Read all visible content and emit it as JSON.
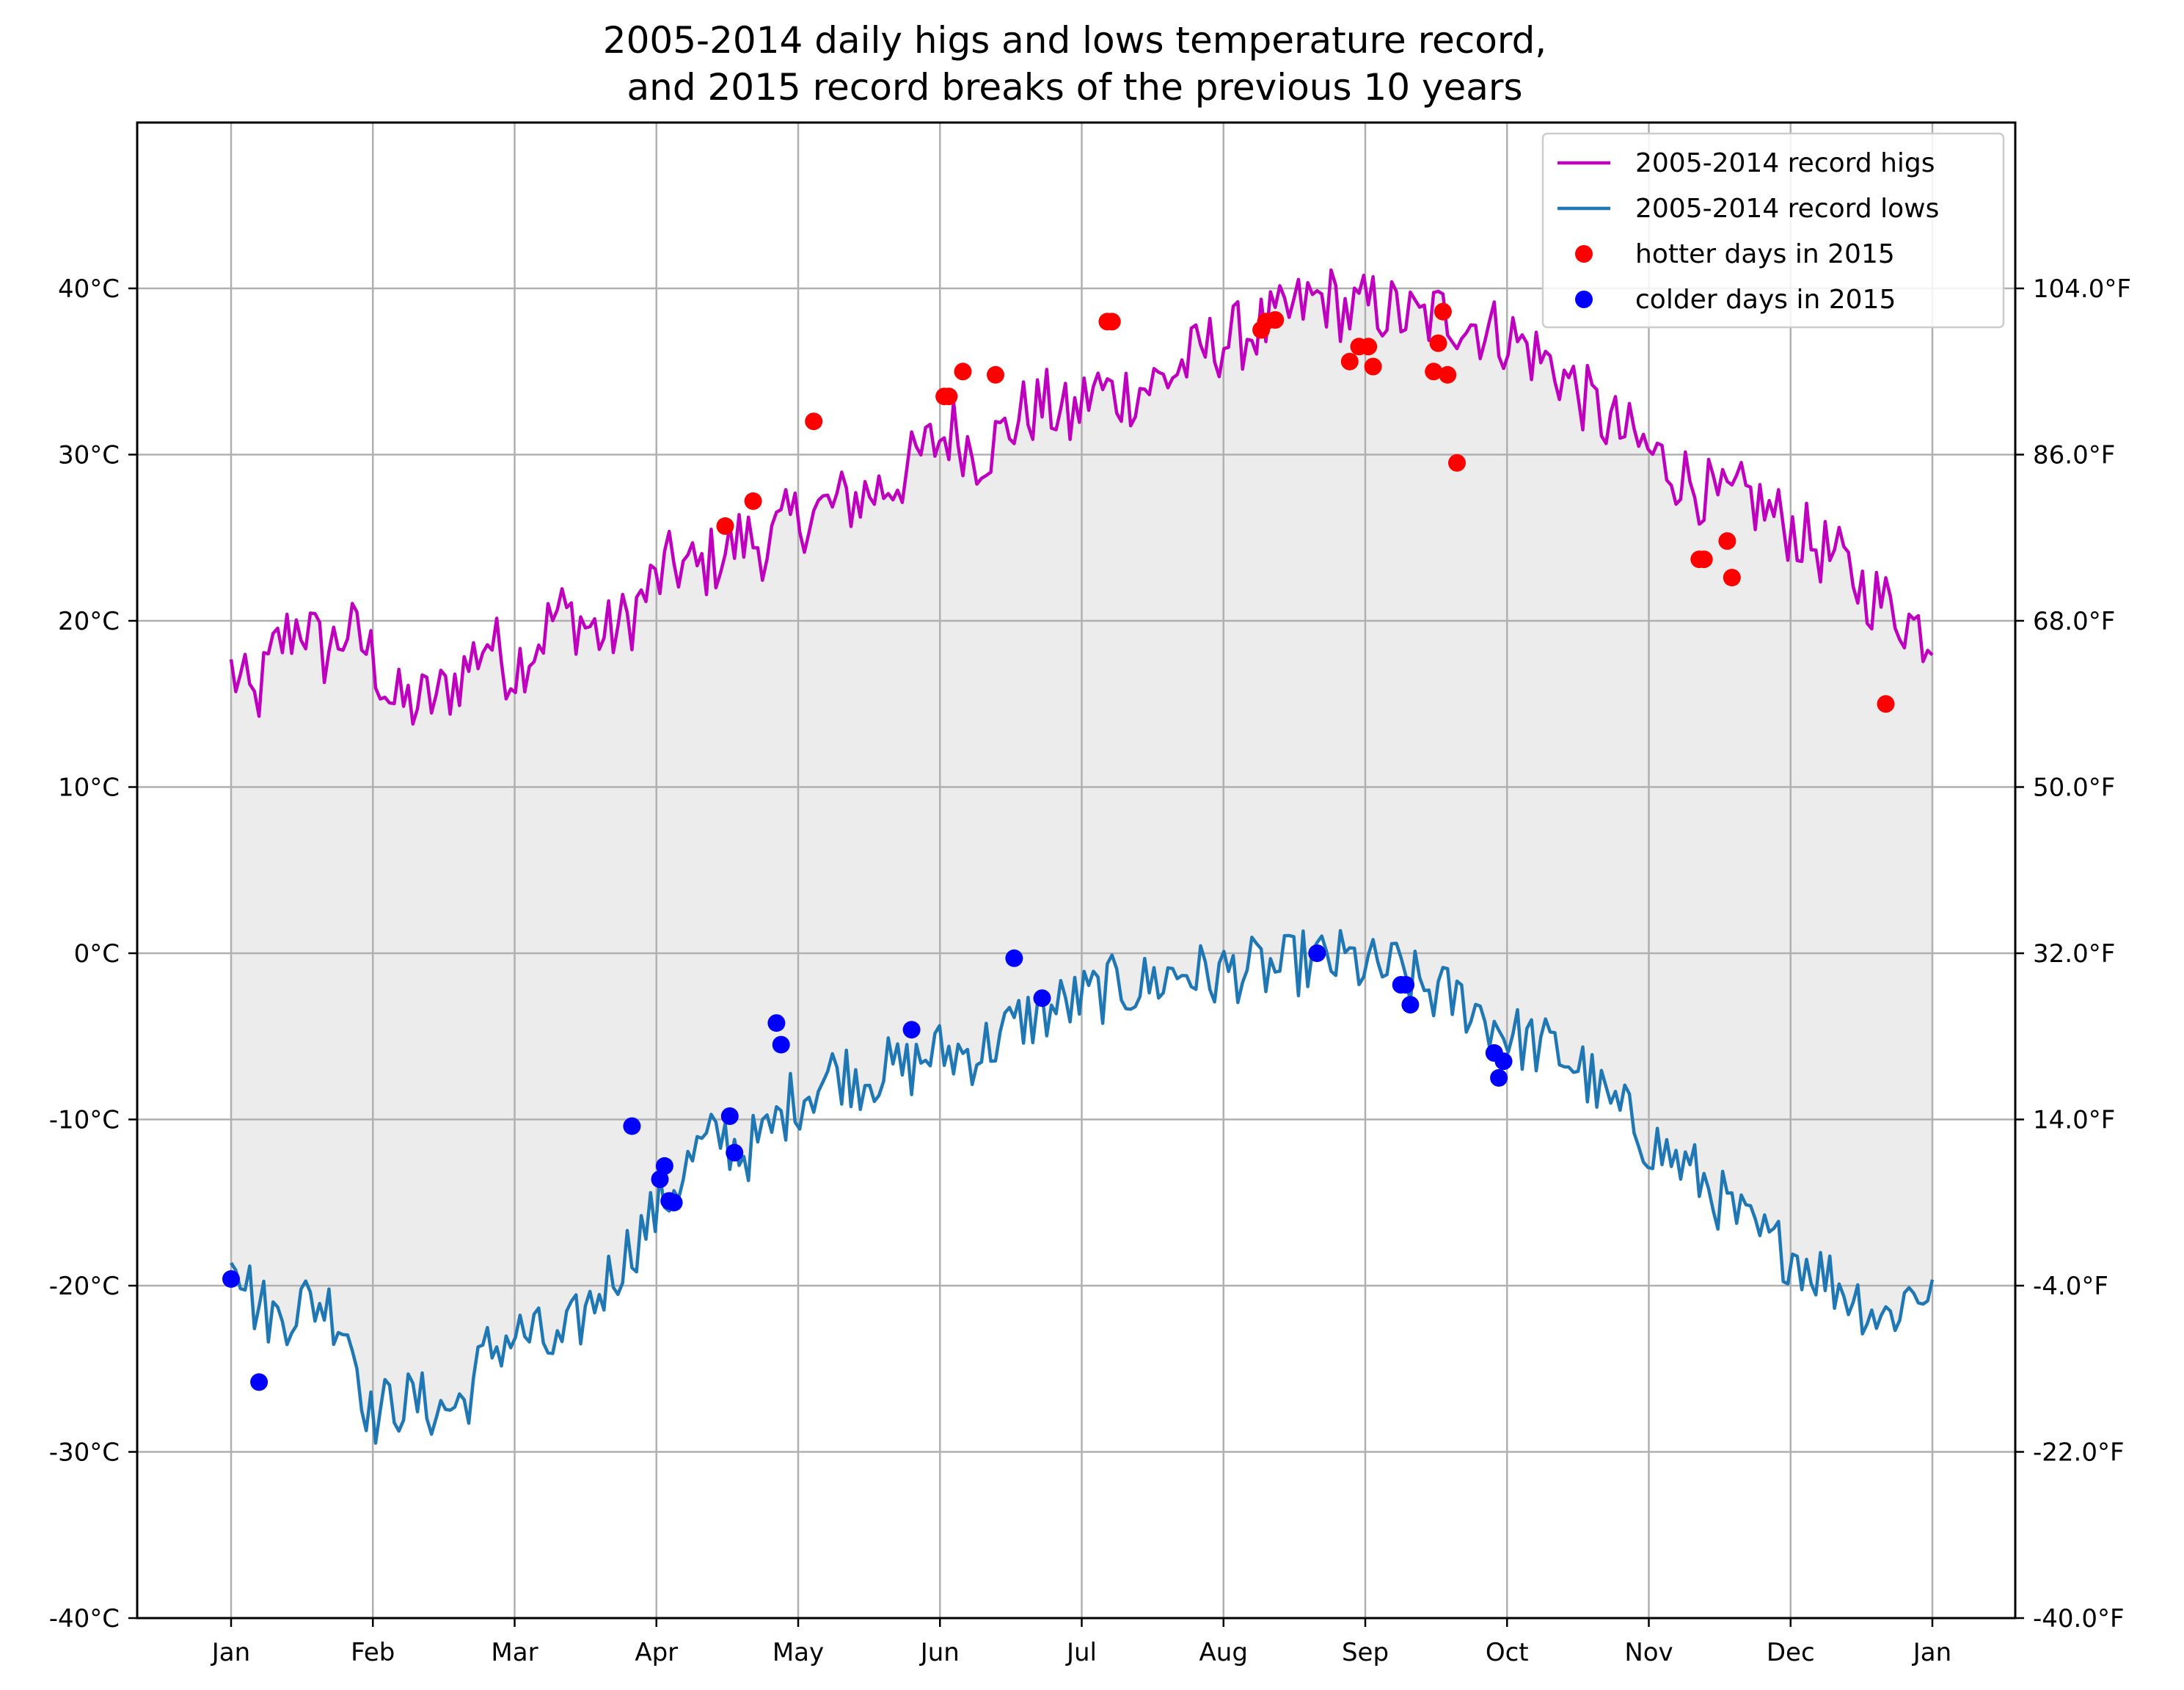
{
  "chart_data": {
    "type": "line",
    "title": [
      "2005-2014 daily higs and lows temperature record,",
      "and 2015 record breaks of the previous 10 years"
    ],
    "x_ticks": [
      "Jan",
      "Feb",
      "Mar",
      "Apr",
      "May",
      "Jun",
      "Jul",
      "Aug",
      "Sep",
      "Oct",
      "Nov",
      "Dec",
      "Jan"
    ],
    "y_ticks_left": [
      "-40$^\\circ$C",
      "-30$^\\circ$C",
      "-20$^\\circ$C",
      "-10$^\\circ$C",
      "0$^\\circ$C",
      "10$^\\circ$C",
      "20$^\\circ$C",
      "30$^\\circ$C",
      "40$^\\circ$C"
    ],
    "y_ticks_left_display": [
      "-40°C",
      "-30°C",
      "-20°C",
      "-10°C",
      "0°C",
      "10°C",
      "20°C",
      "30°C",
      "40°C"
    ],
    "y_ticks_right_display": [
      "-40.0°F",
      "-22.0°F",
      "-4.0°F",
      "14.0°F",
      "32.0°F",
      "50.0°F",
      "68.0°F",
      "86.0°F",
      "104.0°F"
    ],
    "ylim": [
      -40,
      50
    ],
    "xlim": [
      -20,
      385
    ],
    "grid": true,
    "legend_position": "top-right",
    "fill_between": {
      "color": "#ececec"
    },
    "series": [
      {
        "name": "2005-2014 record higs",
        "type": "line",
        "color": "#bf00bf",
        "anchors_day_value": [
          [
            0,
            17
          ],
          [
            5,
            15
          ],
          [
            10,
            18.5
          ],
          [
            15,
            20
          ],
          [
            20,
            18
          ],
          [
            25,
            19.5
          ],
          [
            30,
            18
          ],
          [
            35,
            15
          ],
          [
            40,
            15
          ],
          [
            45,
            15.5
          ],
          [
            50,
            17
          ],
          [
            55,
            19
          ],
          [
            60,
            17
          ],
          [
            65,
            18.5
          ],
          [
            70,
            20.5
          ],
          [
            75,
            20
          ],
          [
            80,
            19
          ],
          [
            85,
            20
          ],
          [
            90,
            22
          ],
          [
            95,
            23.5
          ],
          [
            100,
            23
          ],
          [
            105,
            24
          ],
          [
            110,
            25
          ],
          [
            115,
            24.5
          ],
          [
            120,
            26
          ],
          [
            125,
            26.5
          ],
          [
            130,
            27
          ],
          [
            135,
            27.5
          ],
          [
            140,
            28
          ],
          [
            145,
            29
          ],
          [
            150,
            30.5
          ],
          [
            155,
            31.5
          ],
          [
            160,
            30
          ],
          [
            165,
            31
          ],
          [
            170,
            32.5
          ],
          [
            175,
            33
          ],
          [
            180,
            32
          ],
          [
            185,
            34
          ],
          [
            190,
            33.5
          ],
          [
            195,
            34
          ],
          [
            200,
            34.5
          ],
          [
            205,
            35.5
          ],
          [
            210,
            36.5
          ],
          [
            215,
            37
          ],
          [
            220,
            37.5
          ],
          [
            225,
            38
          ],
          [
            230,
            39
          ],
          [
            235,
            39.5
          ],
          [
            240,
            38.5
          ],
          [
            245,
            39
          ],
          [
            250,
            38.5
          ],
          [
            255,
            38
          ],
          [
            260,
            38.5
          ],
          [
            265,
            38
          ],
          [
            270,
            37.5
          ],
          [
            275,
            37
          ],
          [
            280,
            36
          ],
          [
            285,
            35
          ],
          [
            290,
            33.5
          ],
          [
            295,
            32
          ],
          [
            300,
            31
          ],
          [
            305,
            30
          ],
          [
            310,
            29
          ],
          [
            315,
            28
          ],
          [
            320,
            27
          ],
          [
            325,
            27.5
          ],
          [
            330,
            26.5
          ],
          [
            335,
            25.5
          ],
          [
            340,
            24.5
          ],
          [
            345,
            23.5
          ],
          [
            350,
            22
          ],
          [
            355,
            21
          ],
          [
            360,
            20
          ],
          [
            365,
            19
          ]
        ],
        "noise_amplitude": 2.2
      },
      {
        "name": "2005-2014 record lows",
        "type": "line",
        "color": "#1f77b4",
        "anchors_day_value": [
          [
            0,
            -17
          ],
          [
            5,
            -21
          ],
          [
            10,
            -22
          ],
          [
            15,
            -21
          ],
          [
            20,
            -21
          ],
          [
            25,
            -22.5
          ],
          [
            30,
            -28
          ],
          [
            35,
            -27
          ],
          [
            40,
            -27
          ],
          [
            45,
            -27.5
          ],
          [
            50,
            -27
          ],
          [
            55,
            -24
          ],
          [
            60,
            -23
          ],
          [
            65,
            -23
          ],
          [
            70,
            -24
          ],
          [
            75,
            -22
          ],
          [
            80,
            -20
          ],
          [
            85,
            -18
          ],
          [
            90,
            -16
          ],
          [
            95,
            -14
          ],
          [
            100,
            -12
          ],
          [
            105,
            -11
          ],
          [
            110,
            -12
          ],
          [
            115,
            -11
          ],
          [
            120,
            -9
          ],
          [
            125,
            -8
          ],
          [
            130,
            -7
          ],
          [
            135,
            -7.5
          ],
          [
            140,
            -7
          ],
          [
            145,
            -7
          ],
          [
            150,
            -6
          ],
          [
            155,
            -6
          ],
          [
            160,
            -6
          ],
          [
            165,
            -5
          ],
          [
            170,
            -4
          ],
          [
            175,
            -3.5
          ],
          [
            180,
            -3
          ],
          [
            185,
            -2.5
          ],
          [
            190,
            -2
          ],
          [
            195,
            -2
          ],
          [
            200,
            -1.5
          ],
          [
            205,
            -1
          ],
          [
            210,
            -1.5
          ],
          [
            215,
            -1
          ],
          [
            220,
            -1
          ],
          [
            225,
            -1
          ],
          [
            230,
            -0.5
          ],
          [
            235,
            -0.5
          ],
          [
            240,
            -0.5
          ],
          [
            245,
            -1
          ],
          [
            250,
            -1
          ],
          [
            255,
            -2
          ],
          [
            260,
            -2.5
          ],
          [
            265,
            -3
          ],
          [
            270,
            -4
          ],
          [
            275,
            -5
          ],
          [
            280,
            -5.5
          ],
          [
            285,
            -6
          ],
          [
            290,
            -7
          ],
          [
            295,
            -9
          ],
          [
            300,
            -10
          ],
          [
            305,
            -11.5
          ],
          [
            310,
            -12.5
          ],
          [
            315,
            -13.5
          ],
          [
            320,
            -15
          ],
          [
            325,
            -16.5
          ],
          [
            330,
            -17.5
          ],
          [
            335,
            -18
          ],
          [
            340,
            -19
          ],
          [
            345,
            -20
          ],
          [
            350,
            -21
          ],
          [
            355,
            -22
          ],
          [
            360,
            -20.5
          ],
          [
            365,
            -20
          ]
        ],
        "noise_amplitude": 2.0
      },
      {
        "name": "hotter days in 2015",
        "type": "scatter",
        "color": "#ff0000",
        "points_day_value": [
          [
            106,
            25.7
          ],
          [
            112,
            27.2
          ],
          [
            125,
            32
          ],
          [
            153,
            33.5
          ],
          [
            154,
            33.5
          ],
          [
            157,
            35
          ],
          [
            164,
            34.8
          ],
          [
            188,
            38
          ],
          [
            189,
            38
          ],
          [
            221,
            37.5
          ],
          [
            222,
            38
          ],
          [
            224,
            38.1
          ],
          [
            240,
            35.6
          ],
          [
            242,
            36.5
          ],
          [
            244,
            36.5
          ],
          [
            245,
            35.3
          ],
          [
            258,
            35
          ],
          [
            259,
            36.7
          ],
          [
            260,
            38.6
          ],
          [
            261,
            34.8
          ],
          [
            263,
            29.5
          ],
          [
            315,
            23.7
          ],
          [
            316,
            23.7
          ],
          [
            321,
            24.8
          ],
          [
            322,
            22.6
          ],
          [
            355,
            15
          ]
        ]
      },
      {
        "name": "colder days in 2015",
        "type": "scatter",
        "color": "#0000ff",
        "points_day_value": [
          [
            0,
            -19.6
          ],
          [
            6,
            -25.8
          ],
          [
            86,
            -10.4
          ],
          [
            92,
            -13.6
          ],
          [
            93,
            -12.8
          ],
          [
            94,
            -14.9
          ],
          [
            95,
            -15
          ],
          [
            107,
            -9.8
          ],
          [
            108,
            -12
          ],
          [
            117,
            -4.2
          ],
          [
            118,
            -5.5
          ],
          [
            146,
            -4.6
          ],
          [
            168,
            -0.3
          ],
          [
            174,
            -2.7
          ],
          [
            233,
            0
          ],
          [
            251,
            -1.9
          ],
          [
            252,
            -1.9
          ],
          [
            253,
            -3.1
          ],
          [
            271,
            -6
          ],
          [
            272,
            -7.5
          ],
          [
            273,
            -6.5
          ]
        ]
      }
    ]
  }
}
